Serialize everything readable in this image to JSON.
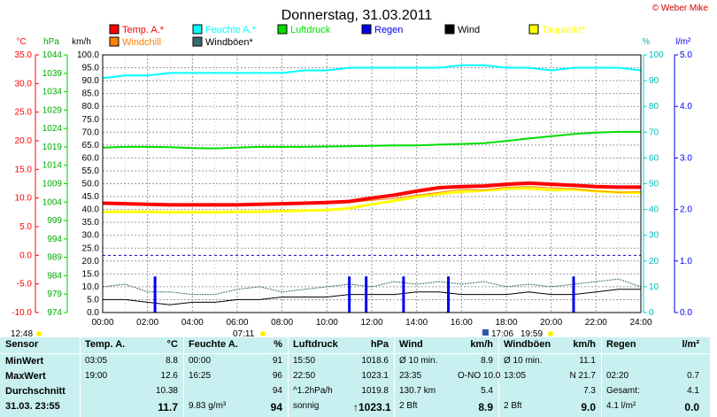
{
  "title": "Donnerstag, 31.03.2011",
  "credit": "© Weber Mike",
  "colors": {
    "temp": "#ff0000",
    "feuchte": "#00ffff",
    "luftdruck": "#00dd00",
    "regen": "#0000ee",
    "wind": "#000000",
    "taupunkt": "#ffff00",
    "windchill": "#ff8000",
    "windboeen": "#3a6c6c"
  },
  "axes": {
    "temp_unit": "°C",
    "hpa_unit": "hPa",
    "kmh_unit": "km/h",
    "pct_unit": "%",
    "rain_unit": "l/m²",
    "temp_ticks": [
      "35.0",
      "30.0",
      "25.0",
      "20.0",
      "15.0",
      "10.0",
      "5.0",
      "0.0",
      "-5.0",
      "-10.0"
    ],
    "hpa_ticks": [
      "1044",
      "1039",
      "1034",
      "1029",
      "1024",
      "1019",
      "1014",
      "1009",
      "1004",
      "999",
      "994",
      "989",
      "984",
      "979",
      "974"
    ],
    "kmh_ticks": [
      "100.0",
      "95.0",
      "90.0",
      "85.0",
      "80.0",
      "75.0",
      "70.0",
      "65.0",
      "60.0",
      "55.0",
      "50.0",
      "45.0",
      "40.0",
      "35.0",
      "30.0",
      "25.0",
      "20.0",
      "15.0",
      "10.0",
      "5.0",
      "0.0"
    ],
    "pct_ticks": [
      "100",
      "90",
      "80",
      "70",
      "60",
      "50",
      "40",
      "30",
      "20",
      "10",
      "0"
    ],
    "rain_ticks": [
      "5.0",
      "4.0",
      "3.0",
      "2.0",
      "1.0",
      "0.0"
    ],
    "time_ticks": [
      "00:00",
      "02:00",
      "04:00",
      "06:00",
      "08:00",
      "10:00",
      "12:00",
      "14:00",
      "16:00",
      "18:00",
      "20:00",
      "22:00",
      "24:00"
    ]
  },
  "sun_moon": {
    "moonset": "12:48",
    "sunrise": "07:11",
    "moonrise": "17:06",
    "sunset": "19:59"
  },
  "chart_data": {
    "type": "line",
    "title": "Donnerstag, 31.03.2011",
    "x": [
      "00:00",
      "01:00",
      "02:00",
      "03:00",
      "04:00",
      "05:00",
      "06:00",
      "07:00",
      "08:00",
      "09:00",
      "10:00",
      "11:00",
      "12:00",
      "13:00",
      "14:00",
      "15:00",
      "16:00",
      "17:00",
      "18:00",
      "19:00",
      "20:00",
      "21:00",
      "22:00",
      "23:00",
      "24:00"
    ],
    "xlim": [
      "00:00",
      "24:00"
    ],
    "series": [
      {
        "name": "Temp. A.*",
        "unit": "°C",
        "values": [
          9.1,
          9.0,
          8.9,
          8.8,
          8.8,
          8.8,
          8.8,
          8.9,
          9.0,
          9.1,
          9.2,
          9.4,
          10.0,
          10.5,
          11.2,
          11.8,
          12.0,
          12.1,
          12.4,
          12.6,
          12.4,
          12.2,
          12.0,
          11.9,
          11.9
        ]
      },
      {
        "name": "Feuchte A.*",
        "unit": "%",
        "values": [
          91,
          92,
          92,
          93,
          93,
          93,
          93,
          93,
          93,
          94,
          94,
          95,
          95,
          95,
          95,
          95,
          96,
          96,
          95,
          95,
          94,
          95,
          95,
          95,
          94
        ]
      },
      {
        "name": "Luftdruck",
        "unit": "hPa",
        "values": [
          1018.8,
          1019.0,
          1019.0,
          1018.9,
          1018.7,
          1018.6,
          1018.8,
          1019.0,
          1019.0,
          1019.0,
          1019.1,
          1019.2,
          1019.3,
          1019.4,
          1019.4,
          1019.6,
          1019.8,
          1020.0,
          1020.6,
          1021.3,
          1021.9,
          1022.5,
          1022.9,
          1023.1,
          1023.1
        ]
      },
      {
        "name": "Regen",
        "unit": "l/m²",
        "events": [
          {
            "time": "02:20",
            "value": 0.7
          },
          {
            "time": "11:00",
            "value": 0.7
          },
          {
            "time": "11:45",
            "value": 0.7
          },
          {
            "time": "13:25",
            "value": 0.7
          },
          {
            "time": "15:25",
            "value": 0.7
          },
          {
            "time": "21:00",
            "value": 0.7
          }
        ]
      },
      {
        "name": "Wind",
        "unit": "km/h",
        "values": [
          5,
          5,
          4,
          3,
          4,
          4,
          5,
          5,
          6,
          6,
          6,
          7,
          7,
          7,
          8,
          8,
          7,
          7,
          7,
          8,
          7,
          7,
          8,
          9,
          9
        ]
      },
      {
        "name": "Taupunkt*",
        "unit": "°C",
        "values": [
          7.6,
          7.6,
          7.6,
          7.5,
          7.5,
          7.5,
          7.6,
          7.6,
          7.7,
          7.8,
          7.9,
          8.2,
          8.9,
          9.5,
          10.2,
          10.7,
          11.1,
          11.3,
          11.6,
          11.7,
          11.4,
          11.5,
          11.2,
          11.0,
          10.9
        ]
      },
      {
        "name": "Windchill",
        "unit": "°C",
        "values": [
          9.0,
          8.9,
          8.9,
          8.8,
          8.8,
          8.8,
          8.8,
          8.8,
          8.9,
          9.0,
          9.1,
          9.2,
          9.6,
          9.9,
          10.5,
          11.0,
          11.5,
          11.4,
          11.9,
          12.0,
          11.8,
          11.6,
          11.2,
          11.0,
          11.1
        ]
      },
      {
        "name": "Windböen*",
        "unit": "km/h",
        "values": [
          10,
          11,
          8,
          8,
          7,
          7,
          9,
          10,
          8,
          9,
          10,
          11,
          10,
          12,
          11,
          12,
          11,
          12,
          10,
          11,
          10,
          11,
          12,
          13,
          10
        ]
      }
    ]
  },
  "table": {
    "header": [
      "Sensor",
      "Temp. A.",
      "°C",
      "Feuchte A.",
      "%",
      "Luftdruck",
      "hPa",
      "Wind",
      "km/h",
      "Windböen",
      "km/h",
      "Regen",
      "l/m²"
    ],
    "rows": [
      {
        "label": "MinWert",
        "cells": [
          "03:05",
          "8.8",
          "00:00",
          "91",
          "15:50",
          "1018.6",
          "Ø 10 min.",
          "8.9",
          "Ø 10 min.",
          "11.1",
          "",
          ""
        ]
      },
      {
        "label": "MaxWert",
        "cells": [
          "19:00",
          "12.6",
          "16:25",
          "96",
          "22:50",
          "1023.1",
          "23:35",
          "O-NO 10.0",
          "13:05",
          "N 21.7",
          "02:20",
          "0.7"
        ]
      },
      {
        "label": "Durchschnitt",
        "cells": [
          "",
          "10.38",
          "",
          "94",
          "^1.2hPa/h",
          "1019.8",
          "130.7 km",
          "5.4",
          "",
          "7.3",
          "Gesamt:",
          "4.1"
        ]
      },
      {
        "label": "31.03. 23:55",
        "cells": [
          "",
          "11.7",
          "9.83 g/m³",
          "94",
          "sonnig",
          "↑1023.1",
          "2 Bft",
          "8.9",
          "2 Bft",
          "9.0",
          "4.1 l/m²",
          "0.0"
        ]
      }
    ]
  }
}
